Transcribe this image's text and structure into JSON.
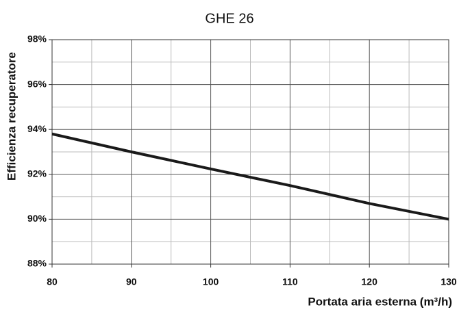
{
  "chart_data": {
    "type": "line",
    "title": "GHE 26",
    "x_label": "Portata aria esterna (m³/h)",
    "y_label": "Efficienza recuperatore",
    "x": [
      80,
      90,
      100,
      110,
      120,
      130
    ],
    "series": [
      {
        "name": "GHE 26",
        "color": "#1a1a1a",
        "values": [
          93.8,
          93.0,
          92.24,
          91.5,
          90.7,
          90.0
        ]
      }
    ],
    "xlim": [
      80,
      130
    ],
    "xticks": [
      80,
      90,
      100,
      110,
      120,
      130
    ],
    "ylim": [
      88,
      98
    ],
    "yticks": [
      {
        "value": 88,
        "label": "88%"
      },
      {
        "value": 90,
        "label": "90%"
      },
      {
        "value": 92,
        "label": "92%"
      },
      {
        "value": 94,
        "label": "94%"
      },
      {
        "value": 96,
        "label": "96%"
      },
      {
        "value": 98,
        "label": "98%"
      }
    ],
    "grid": true,
    "minor_grid": true
  }
}
